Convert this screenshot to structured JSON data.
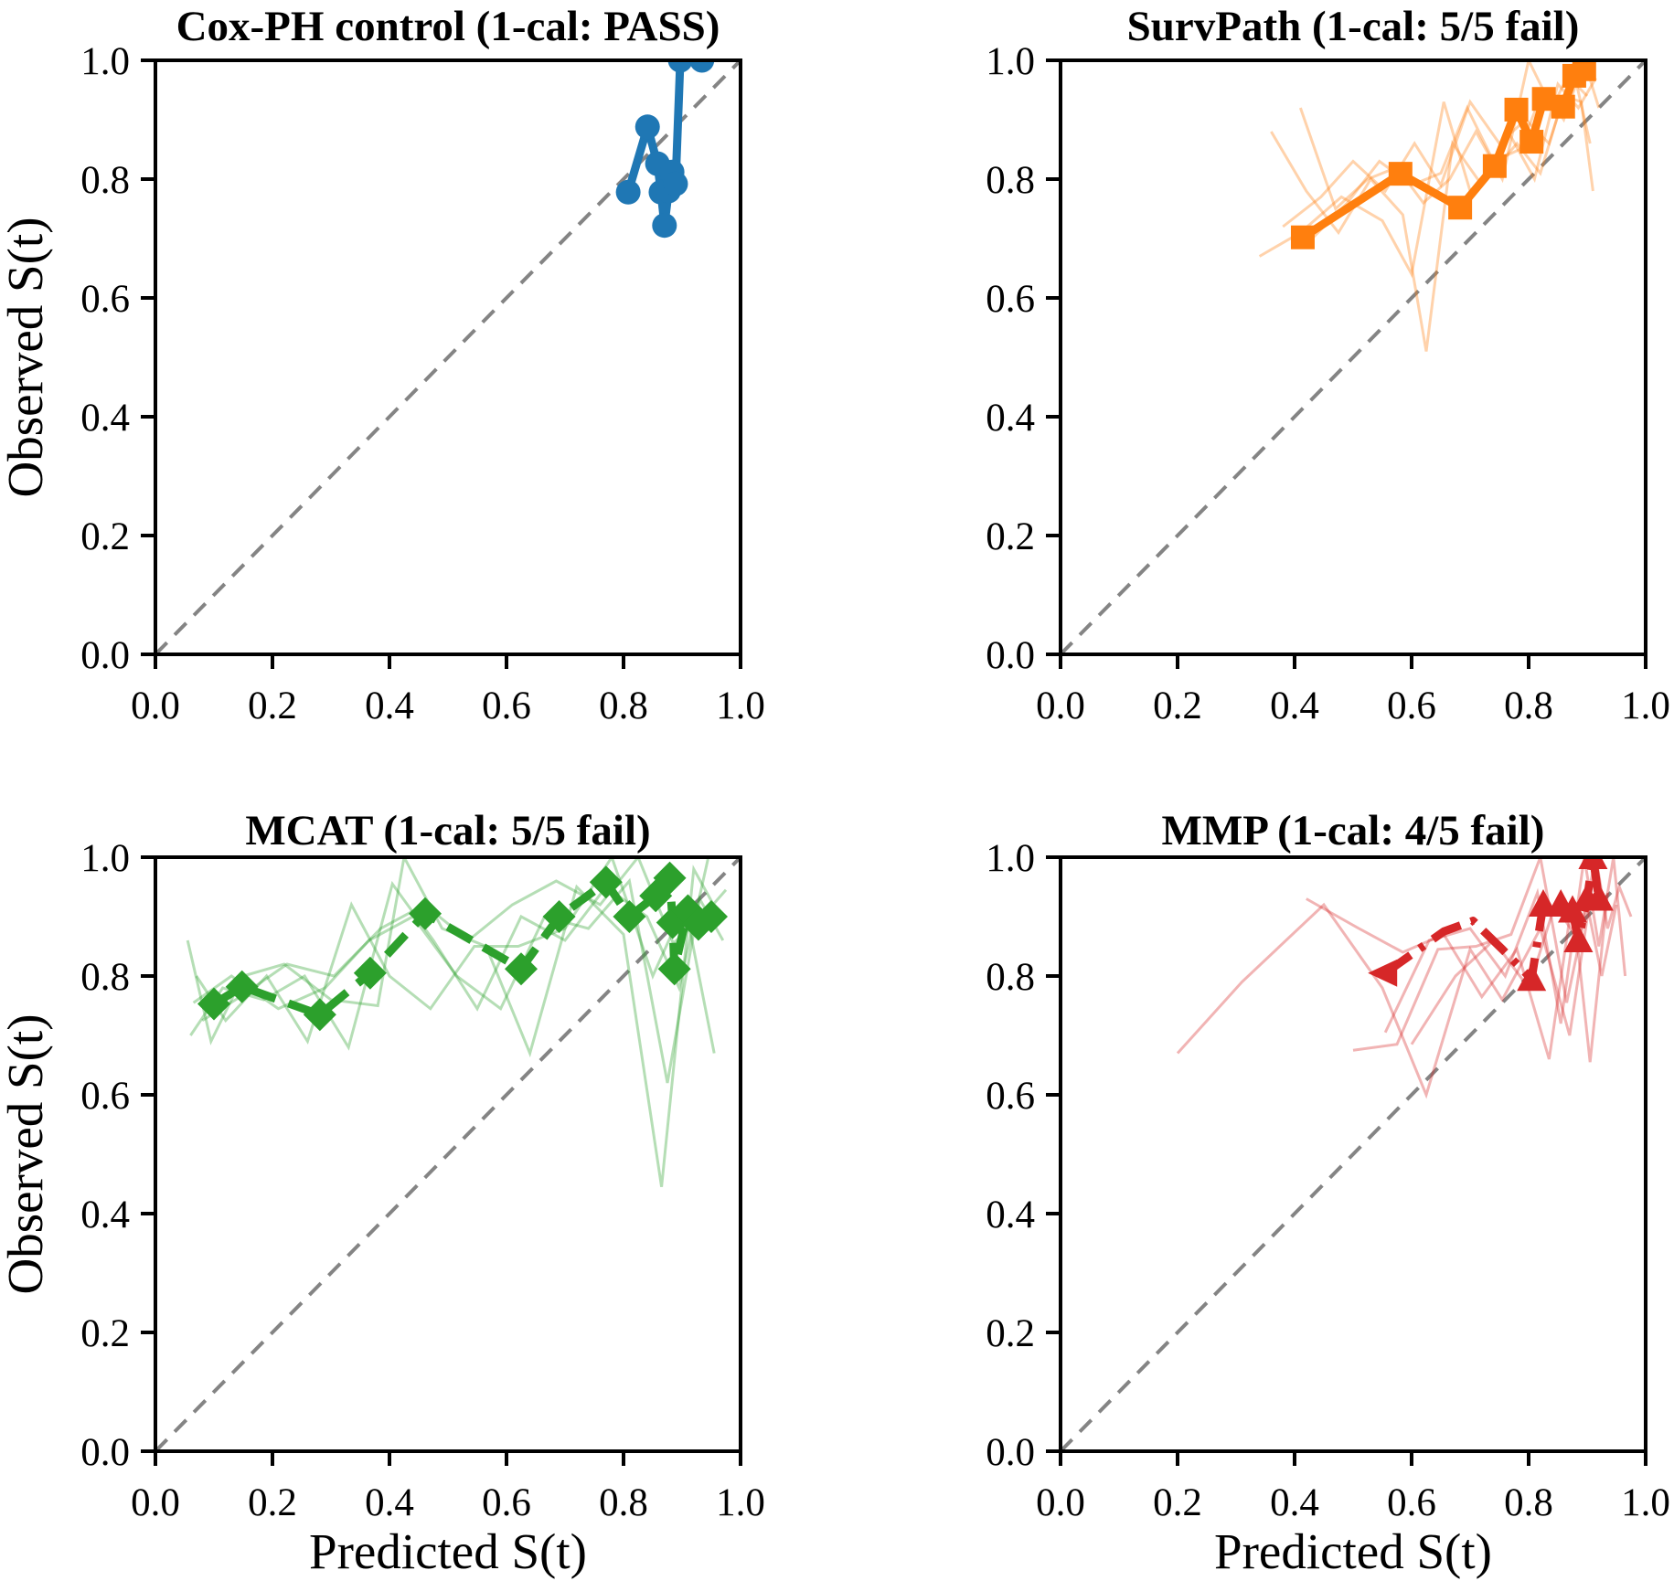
{
  "figure": {
    "background": "#ffffff",
    "xlabel": "Predicted S(t)",
    "ylabel": "Observed S(t)",
    "diagonal": {
      "color": "#848484",
      "style": "dashed"
    },
    "axes": {
      "xlim": [
        0,
        1
      ],
      "ylim": [
        0,
        1
      ],
      "xtick_labels": [
        "0.0",
        "0.2",
        "0.4",
        "0.6",
        "0.8",
        "1.0"
      ],
      "ytick_labels": [
        "0.0",
        "0.2",
        "0.4",
        "0.6",
        "0.8",
        "1.0"
      ]
    }
  },
  "chart_data": [
    {
      "type": "line",
      "title": "Cox-PH control (1-cal: PASS)",
      "model": "Cox-PH control",
      "one_cal_result": "PASS",
      "color": "#1f77b4",
      "marker": "circle",
      "line_style": "solid",
      "fold_opacity": 0.35,
      "xlim": [
        0,
        1
      ],
      "ylim": [
        0,
        1
      ],
      "mean_curve": [
        [
          0.808,
          0.778
        ],
        [
          0.841,
          0.888
        ],
        [
          0.858,
          0.826
        ],
        [
          0.864,
          0.778
        ],
        [
          0.87,
          0.722
        ],
        [
          0.877,
          0.78
        ],
        [
          0.883,
          0.812
        ],
        [
          0.889,
          0.792
        ],
        [
          0.897,
          1.0
        ],
        [
          0.934,
          1.0
        ]
      ],
      "folds": []
    },
    {
      "type": "line",
      "title": "SurvPath (1-cal: 5/5 fail)",
      "model": "SurvPath",
      "one_cal_result": "5/5 fail",
      "color": "#ff7f0e",
      "marker": "square",
      "line_style": "solid",
      "fold_opacity": 0.35,
      "xlim": [
        0,
        1
      ],
      "ylim": [
        0,
        1
      ],
      "mean_curve": [
        [
          0.414,
          0.702
        ],
        [
          0.581,
          0.809
        ],
        [
          0.683,
          0.752
        ],
        [
          0.742,
          0.822
        ],
        [
          0.779,
          0.917
        ],
        [
          0.805,
          0.863
        ],
        [
          0.826,
          0.935
        ],
        [
          0.859,
          0.922
        ],
        [
          0.878,
          0.974
        ],
        [
          0.895,
          0.985
        ]
      ],
      "folds": [
        [
          [
            0.34,
            0.67
          ],
          [
            0.41,
            0.71
          ],
          [
            0.48,
            0.77
          ],
          [
            0.55,
            0.73
          ],
          [
            0.6,
            0.64
          ],
          [
            0.655,
            0.93
          ],
          [
            0.7,
            0.78
          ],
          [
            0.745,
            0.82
          ],
          [
            0.78,
            0.86
          ],
          [
            0.82,
            0.81
          ],
          [
            0.86,
            0.94
          ],
          [
            0.89,
            0.93
          ],
          [
            0.91,
            0.78
          ]
        ],
        [
          [
            0.36,
            0.88
          ],
          [
            0.42,
            0.78
          ],
          [
            0.475,
            0.71
          ],
          [
            0.53,
            0.8
          ],
          [
            0.585,
            0.74
          ],
          [
            0.625,
            0.51
          ],
          [
            0.67,
            0.86
          ],
          [
            0.72,
            0.79
          ],
          [
            0.765,
            0.88
          ],
          [
            0.81,
            0.8
          ],
          [
            0.85,
            0.96
          ],
          [
            0.885,
            0.92
          ],
          [
            0.915,
            0.97
          ]
        ],
        [
          [
            0.41,
            0.92
          ],
          [
            0.47,
            0.75
          ],
          [
            0.525,
            0.8
          ],
          [
            0.575,
            0.82
          ],
          [
            0.62,
            0.76
          ],
          [
            0.665,
            0.8
          ],
          [
            0.71,
            0.88
          ],
          [
            0.755,
            0.8
          ],
          [
            0.8,
            1.0
          ],
          [
            0.84,
            0.92
          ],
          [
            0.875,
            0.99
          ],
          [
            0.905,
            0.86
          ]
        ],
        [
          [
            0.43,
            0.7
          ],
          [
            0.49,
            0.76
          ],
          [
            0.545,
            0.83
          ],
          [
            0.6,
            0.79
          ],
          [
            0.65,
            0.81
          ],
          [
            0.695,
            0.92
          ],
          [
            0.74,
            0.83
          ],
          [
            0.785,
            0.85
          ],
          [
            0.825,
            0.95
          ],
          [
            0.86,
            0.9
          ],
          [
            0.895,
            1.0
          ],
          [
            0.92,
            0.92
          ]
        ],
        [
          [
            0.38,
            0.72
          ],
          [
            0.445,
            0.77
          ],
          [
            0.5,
            0.83
          ],
          [
            0.555,
            0.78
          ],
          [
            0.605,
            0.86
          ],
          [
            0.65,
            0.79
          ],
          [
            0.7,
            0.93
          ],
          [
            0.75,
            0.86
          ],
          [
            0.795,
            0.9
          ],
          [
            0.835,
            0.86
          ],
          [
            0.87,
            0.97
          ],
          [
            0.9,
            0.94
          ]
        ]
      ]
    },
    {
      "type": "line",
      "title": "MCAT (1-cal: 5/5 fail)",
      "model": "MCAT",
      "one_cal_result": "5/5 fail",
      "color": "#2ca02c",
      "marker": "diamond",
      "line_style": "dashed",
      "fold_opacity": 0.35,
      "xlim": [
        0,
        1
      ],
      "ylim": [
        0,
        1
      ],
      "mean_curve": [
        [
          0.1,
          0.753
        ],
        [
          0.148,
          0.782
        ],
        [
          0.281,
          0.735
        ],
        [
          0.367,
          0.805
        ],
        [
          0.461,
          0.905
        ],
        [
          0.625,
          0.812
        ],
        [
          0.69,
          0.9
        ],
        [
          0.77,
          0.958
        ],
        [
          0.81,
          0.9
        ],
        [
          0.855,
          0.935
        ],
        [
          0.879,
          0.965
        ],
        [
          0.884,
          0.89
        ],
        [
          0.887,
          0.812
        ],
        [
          0.91,
          0.91
        ],
        [
          0.928,
          0.887
        ],
        [
          0.95,
          0.9
        ]
      ],
      "folds": [
        [
          [
            0.055,
            0.86
          ],
          [
            0.095,
            0.69
          ],
          [
            0.15,
            0.8
          ],
          [
            0.22,
            0.82
          ],
          [
            0.3,
            0.76
          ],
          [
            0.38,
            0.75
          ],
          [
            0.425,
            1.0
          ],
          [
            0.49,
            0.88
          ],
          [
            0.565,
            0.85
          ],
          [
            0.64,
            0.67
          ],
          [
            0.72,
            0.95
          ],
          [
            0.8,
            0.87
          ],
          [
            0.865,
            0.445
          ],
          [
            0.92,
            0.98
          ],
          [
            0.965,
            0.9
          ]
        ],
        [
          [
            0.07,
            0.8
          ],
          [
            0.12,
            0.725
          ],
          [
            0.19,
            0.8
          ],
          [
            0.26,
            0.69
          ],
          [
            0.335,
            0.92
          ],
          [
            0.4,
            0.8
          ],
          [
            0.47,
            0.745
          ],
          [
            0.545,
            0.85
          ],
          [
            0.62,
            0.85
          ],
          [
            0.7,
            0.88
          ],
          [
            0.78,
            1.0
          ],
          [
            0.85,
            0.8
          ],
          [
            0.905,
            0.92
          ],
          [
            0.955,
            0.67
          ]
        ],
        [
          [
            0.06,
            0.7
          ],
          [
            0.115,
            0.78
          ],
          [
            0.185,
            0.76
          ],
          [
            0.255,
            0.8
          ],
          [
            0.33,
            0.68
          ],
          [
            0.405,
            0.955
          ],
          [
            0.475,
            0.86
          ],
          [
            0.55,
            0.745
          ],
          [
            0.625,
            0.9
          ],
          [
            0.7,
            0.86
          ],
          [
            0.77,
            0.95
          ],
          [
            0.84,
            0.9
          ],
          [
            0.895,
            0.78
          ],
          [
            0.945,
            1.0
          ]
        ],
        [
          [
            0.065,
            0.755
          ],
          [
            0.13,
            0.8
          ],
          [
            0.21,
            0.745
          ],
          [
            0.29,
            0.78
          ],
          [
            0.365,
            0.86
          ],
          [
            0.44,
            0.9
          ],
          [
            0.515,
            0.8
          ],
          [
            0.59,
            0.745
          ],
          [
            0.665,
            0.9
          ],
          [
            0.74,
            0.88
          ],
          [
            0.81,
            0.96
          ],
          [
            0.875,
            0.62
          ],
          [
            0.93,
            0.93
          ],
          [
            0.97,
            0.86
          ]
        ],
        [
          [
            0.08,
            0.725
          ],
          [
            0.145,
            0.765
          ],
          [
            0.225,
            0.82
          ],
          [
            0.305,
            0.8
          ],
          [
            0.385,
            0.88
          ],
          [
            0.46,
            0.92
          ],
          [
            0.535,
            0.86
          ],
          [
            0.61,
            0.92
          ],
          [
            0.685,
            0.96
          ],
          [
            0.76,
            0.92
          ],
          [
            0.825,
            1.0
          ],
          [
            0.885,
            0.855
          ],
          [
            0.935,
            0.9
          ],
          [
            0.975,
            0.945
          ]
        ]
      ]
    },
    {
      "type": "line",
      "title": "MMP (1-cal: 4/5 fail)",
      "model": "MMP",
      "one_cal_result": "4/5 fail",
      "color": "#d62728",
      "marker": "triangle",
      "line_style": "dashdot",
      "fold_opacity": 0.35,
      "xlim": [
        0,
        1
      ],
      "ylim": [
        0,
        1
      ],
      "mean_curve": [
        [
          0.555,
          0.805,
          "left"
        ],
        [
          0.655,
          0.875,
          "none"
        ],
        [
          0.705,
          0.893,
          "none"
        ],
        [
          0.755,
          0.845,
          "none"
        ],
        [
          0.805,
          0.795
        ],
        [
          0.825,
          0.92
        ],
        [
          0.855,
          0.92
        ],
        [
          0.875,
          0.91
        ],
        [
          0.885,
          0.86
        ],
        [
          0.9,
          0.93
        ],
        [
          0.91,
          1.0
        ],
        [
          0.92,
          0.93
        ]
      ],
      "folds": [
        [
          [
            0.2,
            0.67
          ],
          [
            0.31,
            0.79
          ],
          [
            0.45,
            0.92
          ],
          [
            0.55,
            0.78
          ],
          [
            0.625,
            0.6
          ],
          [
            0.7,
            0.845
          ],
          [
            0.755,
            0.76
          ],
          [
            0.82,
            0.88
          ],
          [
            0.87,
            0.7
          ],
          [
            0.905,
            0.93
          ]
        ],
        [
          [
            0.42,
            0.93
          ],
          [
            0.51,
            0.88
          ],
          [
            0.585,
            0.84
          ],
          [
            0.655,
            0.87
          ],
          [
            0.72,
            0.765
          ],
          [
            0.78,
            0.845
          ],
          [
            0.835,
            0.66
          ],
          [
            0.875,
            0.93
          ],
          [
            0.905,
            0.655
          ],
          [
            0.935,
            0.94
          ]
        ],
        [
          [
            0.5,
            0.675
          ],
          [
            0.575,
            0.685
          ],
          [
            0.645,
            0.845
          ],
          [
            0.71,
            0.85
          ],
          [
            0.77,
            0.87
          ],
          [
            0.82,
            1.0
          ],
          [
            0.865,
            0.755
          ],
          [
            0.9,
            0.92
          ],
          [
            0.925,
            0.8
          ],
          [
            0.95,
            0.92
          ]
        ],
        [
          [
            0.555,
            0.705
          ],
          [
            0.63,
            0.86
          ],
          [
            0.7,
            0.88
          ],
          [
            0.76,
            0.8
          ],
          [
            0.815,
            0.94
          ],
          [
            0.855,
            0.72
          ],
          [
            0.895,
            1.0
          ],
          [
            0.92,
            0.85
          ],
          [
            0.945,
            1.0
          ],
          [
            0.965,
            0.8
          ]
        ],
        [
          [
            0.6,
            0.685
          ],
          [
            0.675,
            0.8
          ],
          [
            0.74,
            0.86
          ],
          [
            0.8,
            0.78
          ],
          [
            0.845,
            0.92
          ],
          [
            0.885,
            0.86
          ],
          [
            0.915,
            1.0
          ],
          [
            0.935,
            0.88
          ],
          [
            0.955,
            0.95
          ],
          [
            0.975,
            0.9
          ]
        ]
      ]
    }
  ]
}
